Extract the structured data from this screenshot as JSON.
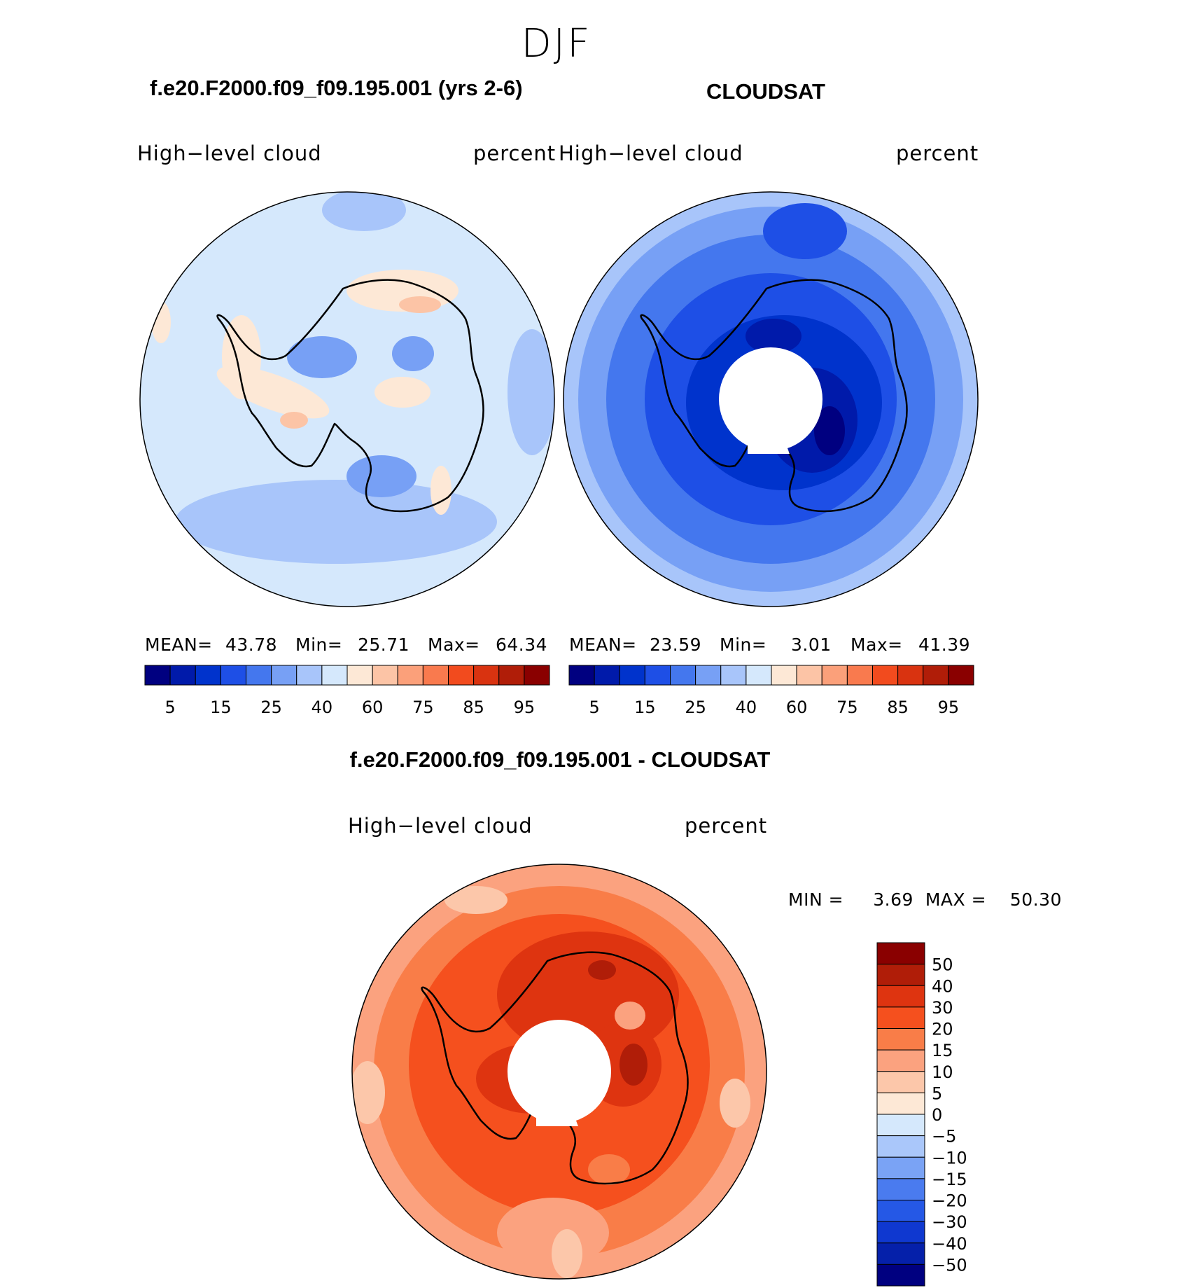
{
  "title": "DJF",
  "panels": [
    {
      "title": "f.e20.F2000.f09_f09.195.001 (yrs 2-6)",
      "left_label": "High−level  cloud",
      "right_label": "percent",
      "mean_label": "MEAN=",
      "mean_value": "43.78",
      "min_label": "Min=",
      "min_value": "25.71",
      "max_label": "Max=",
      "max_value": "64.34"
    },
    {
      "title": "CLOUDSAT",
      "left_label": "High−level  cloud",
      "right_label": "percent",
      "mean_label": "MEAN=",
      "mean_value": "23.59",
      "min_label": "Min=",
      "min_value": "3.01",
      "max_label": "Max=",
      "max_value": "41.39"
    },
    {
      "title": "f.e20.F2000.f09_f09.195.001 - CLOUDSAT",
      "left_label": "High−level  cloud",
      "right_label": "percent",
      "minmax_text": "MIN =     3.69  MAX =    50.30"
    }
  ],
  "colorbar_top": {
    "colors": [
      "#000080",
      "#001aaa",
      "#0033cc",
      "#1e4fe6",
      "#4477ee",
      "#77a0f5",
      "#a8c5fa",
      "#d5e8fc",
      "#fde8d6",
      "#fcc4a6",
      "#fba07a",
      "#f97a4e",
      "#f24b1e",
      "#d93310",
      "#b01d08",
      "#8a0000"
    ],
    "tick_labels": [
      "5",
      "15",
      "25",
      "40",
      "60",
      "75",
      "85",
      "95"
    ]
  },
  "colorbar_diff": {
    "colors": [
      "#8a0000",
      "#b01d08",
      "#de3410",
      "#f5501e",
      "#f97d48",
      "#fba27f",
      "#fcc7aa",
      "#fde8d6",
      "#d5e8fc",
      "#aac7fa",
      "#7aa3f5",
      "#4a7bef",
      "#2558e6",
      "#0f38d0",
      "#0520aa",
      "#000080"
    ],
    "tick_labels": [
      "50",
      "40",
      "30",
      "20",
      "15",
      "10",
      "5",
      "0",
      "−5",
      "−10",
      "−15",
      "−20",
      "−30",
      "−40",
      "−50"
    ]
  }
}
